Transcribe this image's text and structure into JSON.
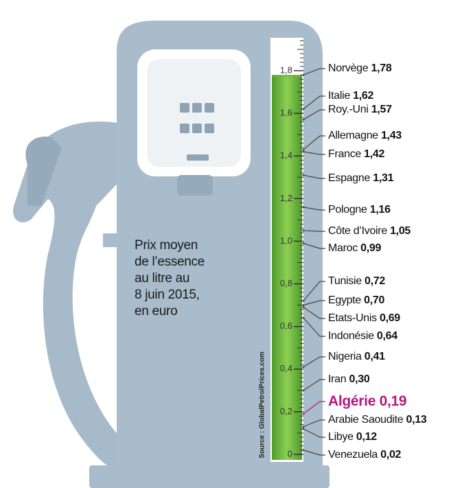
{
  "chart_data": {
    "type": "gauge",
    "title": "Prix moyen\nde l’essence\nau litre au\n8 juin 2015,\nen euro",
    "source": "Source : GlobalPetrolPrices.com",
    "categories": [
      "Norvège",
      "Italie",
      "Roy.-Uni",
      "Allemagne",
      "France",
      "Espagne",
      "Pologne",
      "Côte d’Ivoire",
      "Maroc",
      "Tunisie",
      "Egypte",
      "Etats-Unis",
      "Indonésie",
      "Nigeria",
      "Iran",
      "Algérie",
      "Arabie Saoudite",
      "Libye",
      "Venezuela"
    ],
    "values": [
      1.78,
      1.62,
      1.57,
      1.43,
      1.42,
      1.31,
      1.16,
      1.05,
      0.99,
      0.72,
      0.7,
      0.69,
      0.64,
      0.41,
      0.3,
      0.19,
      0.13,
      0.12,
      0.02
    ],
    "value_labels": [
      "1,78",
      "1,62",
      "1,57",
      "1,43",
      "1,42",
      "1,31",
      "1,16",
      "1,05",
      "0,99",
      "0,72",
      "0,70",
      "0,69",
      "0,64",
      "0,41",
      "0,30",
      "0,19",
      "0,13",
      "0,12",
      "0,02"
    ],
    "color": "#6cb33f",
    "highlight": "Algérie",
    "highlight_color": "#b5177e",
    "ylim": [
      0,
      1.8
    ],
    "yticks": [
      0,
      {
        "value": 0.2,
        "label": "0,2"
      },
      {
        "value": 0.4,
        "label": "0,4"
      },
      {
        "value": 0.6,
        "label": "0,6"
      },
      {
        "value": 0.8,
        "label": "0,8"
      },
      {
        "value": 1.0,
        "label": "1,0"
      },
      {
        "value": 1.2,
        "label": "1,2"
      },
      {
        "value": 1.4,
        "label": "1,4"
      },
      {
        "value": 1.6,
        "label": "1,6"
      },
      {
        "value": 1.8,
        "label": "1,8"
      }
    ]
  }
}
